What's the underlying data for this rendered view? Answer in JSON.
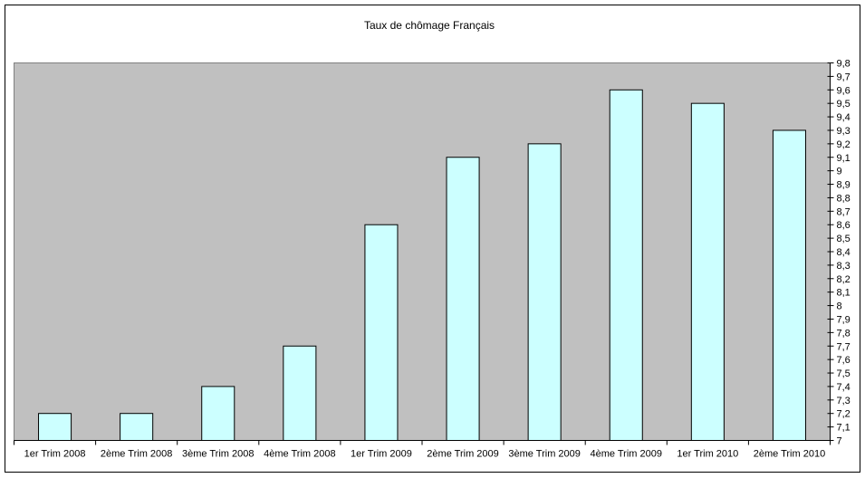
{
  "chart_data": {
    "type": "bar",
    "title": "Taux de chômage Français",
    "xlabel": "",
    "ylabel": "",
    "categories": [
      "1er Trim 2008",
      "2ème Trim 2008",
      "3ème Trim 2008",
      "4ème Trim 2008",
      "1er Trim 2009",
      "2ème Trim 2009",
      "3ème Trim 2009",
      "4ème Trim 2009",
      "1er Trim 2010",
      "2ème Trim 2010"
    ],
    "values": [
      7.2,
      7.2,
      7.4,
      7.7,
      8.6,
      9.1,
      9.2,
      9.6,
      9.5,
      9.3
    ],
    "ylim": [
      7,
      9.8
    ],
    "ytick_step": 0.1,
    "y_axis_side": "right",
    "decimal_separator": ",",
    "grid": false,
    "legend": "none",
    "colors": {
      "bar_fill": "#ccffff",
      "bar_stroke": "#000000",
      "plot_bg": "#c0c0c0",
      "background": "#ffffff"
    }
  }
}
